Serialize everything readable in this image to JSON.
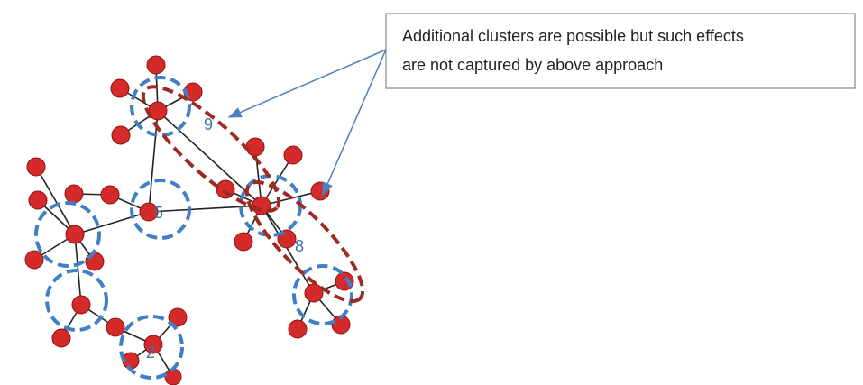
{
  "callout": {
    "lines": [
      "Additional clusters are possible but such effects",
      "are not captured by above approach"
    ]
  },
  "labels": [
    "9",
    "5",
    "8",
    "2"
  ]
}
